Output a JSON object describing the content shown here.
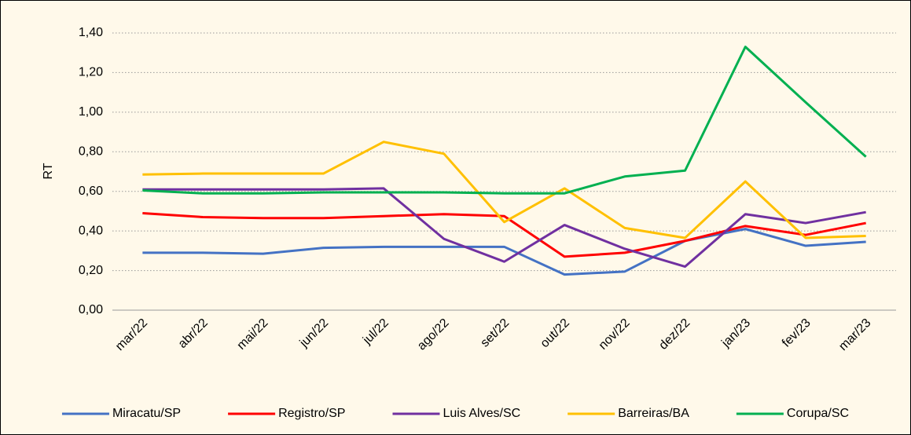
{
  "chart_data": {
    "type": "line",
    "y_label": "RT",
    "categories": [
      "mar/22",
      "abr/22",
      "mai/22",
      "jun/22",
      "jul/22",
      "ago/22",
      "set/22",
      "out/22",
      "nov/22",
      "dez/22",
      "jan/23",
      "fev/23",
      "mar/23"
    ],
    "series": [
      {
        "name": "Miracatu/SP",
        "color": "#4472C4",
        "values": [
          0.29,
          0.29,
          0.285,
          0.315,
          0.32,
          0.32,
          0.32,
          0.18,
          0.195,
          0.35,
          0.41,
          0.325,
          0.345
        ]
      },
      {
        "name": "Registro/SP",
        "color": "#FF0000",
        "values": [
          0.49,
          0.47,
          0.465,
          0.465,
          0.475,
          0.485,
          0.475,
          0.27,
          0.29,
          0.35,
          0.425,
          0.38,
          0.44
        ]
      },
      {
        "name": "Luis Alves/SC",
        "color": "#7030A0",
        "values": [
          0.61,
          0.61,
          0.61,
          0.61,
          0.615,
          0.36,
          0.245,
          0.43,
          0.31,
          0.22,
          0.485,
          0.44,
          0.495
        ]
      },
      {
        "name": "Barreiras/BA",
        "color": "#FFC000",
        "values": [
          0.685,
          0.69,
          0.69,
          0.69,
          0.85,
          0.79,
          0.445,
          0.615,
          0.415,
          0.365,
          0.65,
          0.365,
          0.375
        ]
      },
      {
        "name": "Corupa/SC",
        "color": "#00B050",
        "values": [
          0.605,
          0.59,
          0.59,
          0.595,
          0.595,
          0.595,
          0.59,
          0.59,
          0.675,
          0.705,
          1.33,
          1.05,
          0.775
        ]
      }
    ],
    "ylim": [
      0,
      1.4
    ],
    "yticks": [
      {
        "value": 0,
        "label": "0,00"
      },
      {
        "value": 0.2,
        "label": "0,20"
      },
      {
        "value": 0.4,
        "label": "0,40"
      },
      {
        "value": 0.6,
        "label": "0,60"
      },
      {
        "value": 0.8,
        "label": "0,80"
      },
      {
        "value": 1.0,
        "label": "1,00"
      },
      {
        "value": 1.2,
        "label": "1,20"
      },
      {
        "value": 1.4,
        "label": "1,40"
      }
    ],
    "grid": true,
    "legend": "bottom"
  }
}
